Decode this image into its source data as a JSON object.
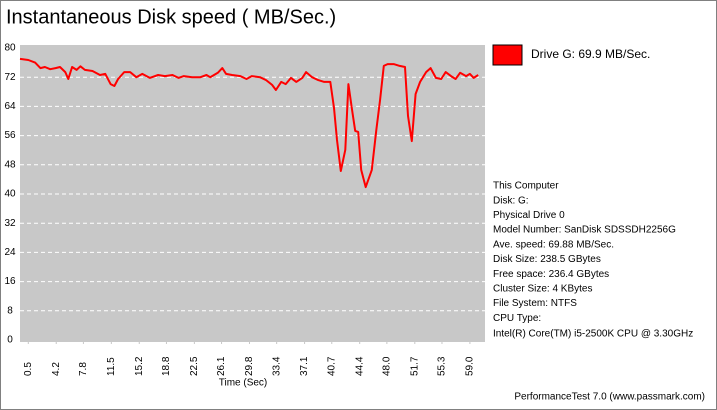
{
  "chart_data": {
    "type": "line",
    "title": "Instantaneous Disk speed ( MB/Sec.)",
    "x_label": "Time (Sec)",
    "xlim": [
      -0.6,
      61.0
    ],
    "xticks": [
      0.5,
      4.2,
      7.8,
      11.5,
      15.2,
      18.8,
      22.5,
      26.1,
      29.8,
      33.4,
      37.1,
      40.7,
      44.4,
      {
        "value": 48,
        "label": "48.0"
      },
      51.7,
      55.3,
      {
        "value": 59,
        "label": "59.0"
      }
    ],
    "ylim": [
      0,
      80
    ],
    "yticks": [
      0,
      8,
      16,
      24,
      32,
      40,
      48,
      56,
      64,
      72,
      80
    ],
    "grid": true,
    "x": [
      -0.6,
      0.5,
      1.4,
      2.1,
      2.7,
      3.4,
      4.1,
      4.7,
      5.4,
      5.8,
      6.3,
      6.9,
      7.4,
      8.0,
      9.0,
      10.0,
      10.7,
      11.4,
      11.9,
      12.4,
      13.2,
      14.0,
      14.8,
      15.6,
      16.6,
      17.7,
      18.6,
      19.6,
      20.4,
      21.1,
      22.2,
      23.3,
      24.1,
      24.6,
      25.6,
      26.2,
      26.7,
      27.5,
      28.6,
      29.4,
      30.1,
      31.2,
      32.0,
      32.8,
      33.3,
      34.0,
      34.6,
      35.3,
      36.0,
      36.8,
      37.3,
      38.1,
      38.9,
      39.7,
      40.5,
      41.0,
      41.4,
      41.9,
      42.5,
      42.9,
      43.4,
      43.8,
      44.2,
      44.6,
      45.2,
      46.0,
      46.6,
      47.1,
      47.6,
      48.1,
      48.9,
      49.7,
      50.4,
      50.8,
      51.3,
      51.8,
      52.4,
      53.2,
      53.8,
      54.5,
      55.2,
      55.8,
      56.5,
      57.1,
      57.7,
      58.5,
      59.0,
      59.5,
      60.1
    ],
    "series": [
      {
        "name": "Drive G: 69.9 MB/Sec.",
        "color": "#ff0000",
        "values": [
          77,
          76.7,
          76,
          74.5,
          74.8,
          74.2,
          74.5,
          74.8,
          73.4,
          71.5,
          74.8,
          74,
          75,
          74,
          73.7,
          72.6,
          72.9,
          70.1,
          69.6,
          71.5,
          73.4,
          73.4,
          72,
          72.9,
          71.8,
          72.6,
          72.3,
          72.6,
          71.8,
          72.3,
          72,
          72,
          72.6,
          72,
          73.2,
          74.5,
          72.9,
          72.6,
          72.3,
          71.5,
          72.3,
          72,
          71.2,
          69.9,
          68.5,
          70.7,
          70.1,
          71.8,
          70.7,
          71.8,
          73.4,
          72,
          71.2,
          70.7,
          70.7,
          63.6,
          54.8,
          46.3,
          52.1,
          70.1,
          63,
          57.3,
          57,
          46.6,
          41.9,
          46.6,
          57.5,
          65.8,
          75.1,
          75.6,
          75.6,
          75.1,
          74.8,
          61.4,
          54.5,
          67.4,
          70.7,
          73.4,
          74.5,
          71.8,
          71.5,
          73.4,
          72.3,
          71.5,
          73.2,
          72.3,
          72.9,
          71.8,
          72.6
        ]
      }
    ],
    "info": [
      "This Computer",
      "Disk: G:",
      "Physical Drive 0",
      "Model Number: SanDisk SDSSDH2256G",
      "Ave. speed: 69.88 MB/Sec.",
      "Disk Size: 238.5 GBytes",
      "Free space: 236.4 GBytes",
      "Cluster Size: 4 KBytes",
      "File System: NTFS",
      "CPU Type:",
      "Intel(R) Core(TM) i5-2500K CPU @ 3.30GHz"
    ],
    "footer": "PerformanceTest 7.0 (www.passmark.com)"
  }
}
